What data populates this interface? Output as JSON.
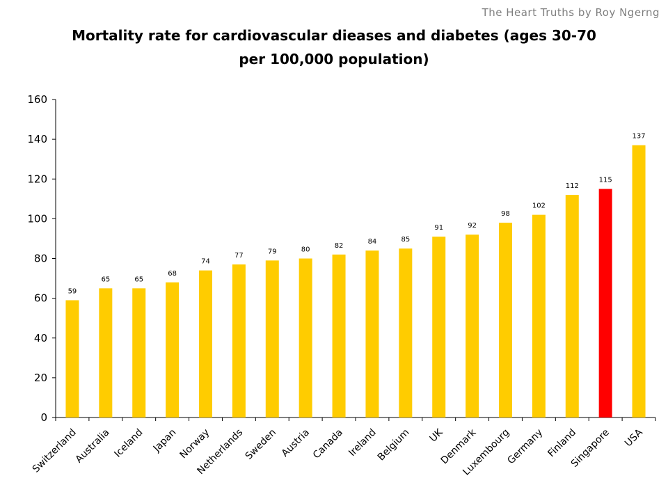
{
  "watermark": "The Heart Truths by Roy Ngerng",
  "chart_data": {
    "type": "bar",
    "title_line1": "Mortality rate for cardiovascular dieases and diabetes (ages 30-70",
    "title_line2": "per 100,000 population)",
    "xlabel": "",
    "ylabel": "",
    "ylim": [
      0,
      160
    ],
    "yticks": [
      0,
      20,
      40,
      60,
      80,
      100,
      120,
      140,
      160
    ],
    "grid": false,
    "categories": [
      "Switzerland",
      "Australia",
      "Iceland",
      "Japan",
      "Norway",
      "Netherlands",
      "Sweden",
      "Austria",
      "Canada",
      "Ireland",
      "Belgium",
      "UK",
      "Denmark",
      "Luxembourg",
      "Germany",
      "Finland",
      "Singapore",
      "USA"
    ],
    "values": [
      59,
      65,
      65,
      68,
      74,
      77,
      79,
      80,
      82,
      84,
      85,
      91,
      92,
      98,
      102,
      112,
      115,
      137
    ],
    "colors": {
      "default": "#ffcc00",
      "highlight": "#ff0000",
      "highlight_category": "Singapore"
    }
  }
}
